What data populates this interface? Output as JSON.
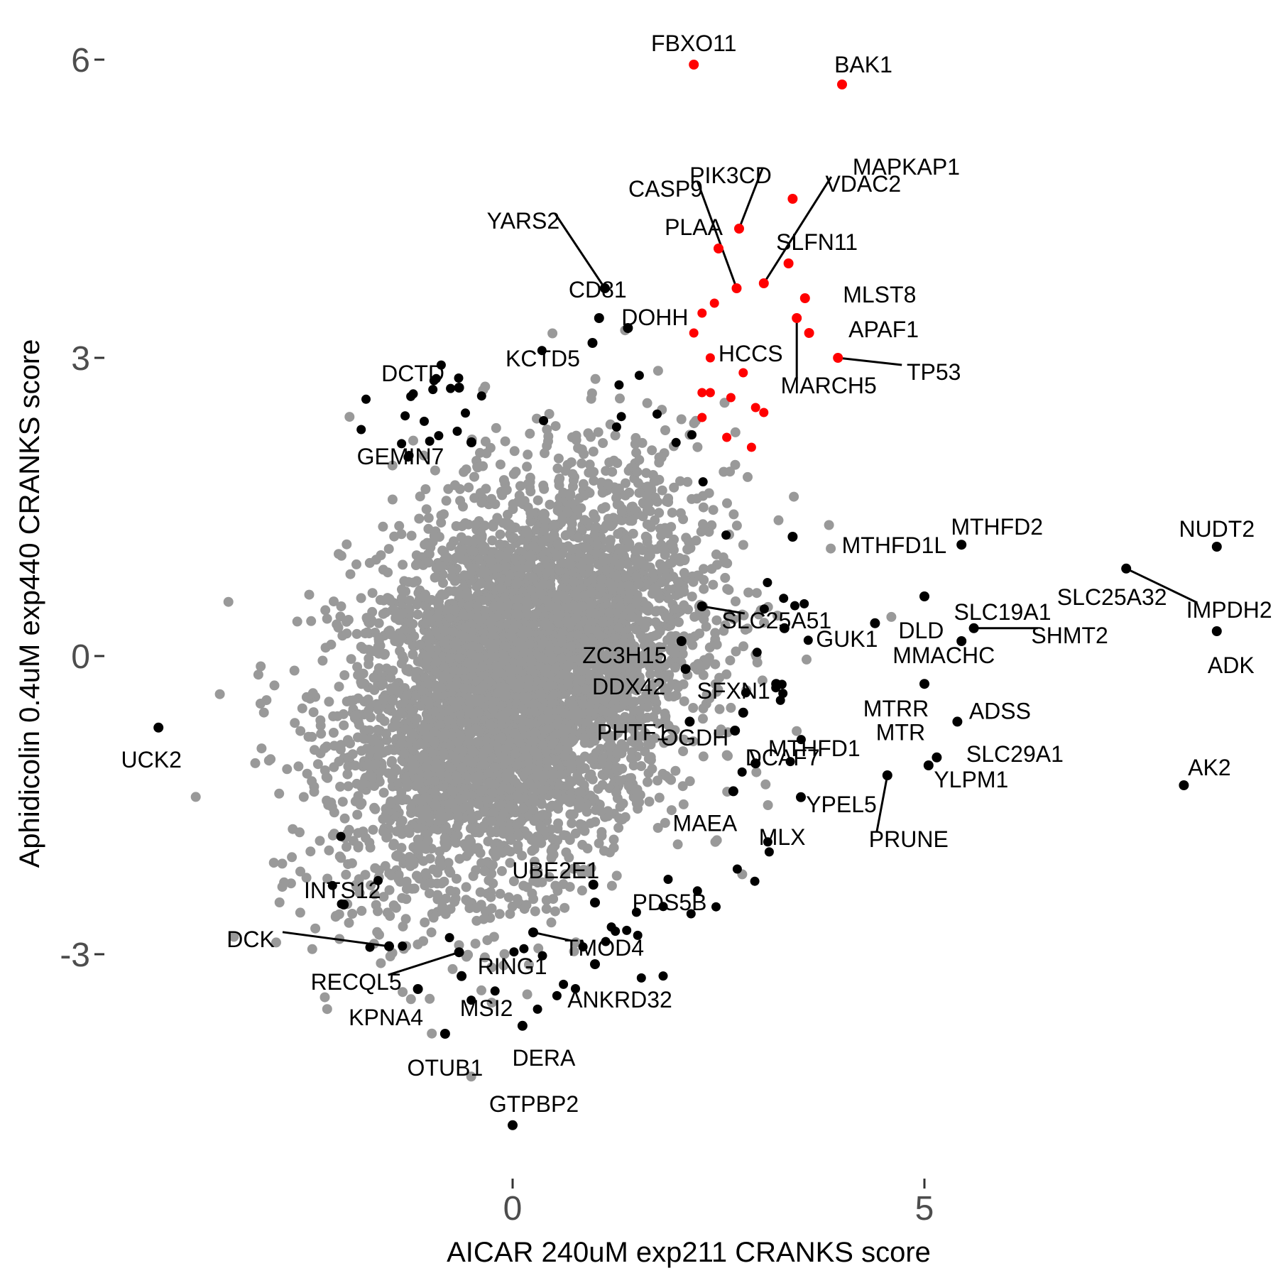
{
  "chart_data": {
    "type": "scatter",
    "xlabel": "AICAR 240uM exp211 CRANKS score",
    "ylabel": "Aphidicolin 0.4uM exp440 CRANKS score",
    "xlim": [
      -4.5,
      8.8
    ],
    "ylim": [
      -5.0,
      6.4
    ],
    "x_ticks": [
      0,
      5
    ],
    "y_ticks": [
      -3,
      0,
      3,
      6
    ],
    "x_tick_labels": [
      "0",
      "5"
    ],
    "y_tick_labels": [
      "-3",
      "0",
      "3",
      "6"
    ],
    "grid": false,
    "legend": "none",
    "colors": {
      "background_points": "#999999",
      "hits": "#000000",
      "highlighted": "#ff0000"
    },
    "background_cloud": {
      "center": [
        0.1,
        -0.25
      ],
      "sd": [
        1.05,
        1.0
      ],
      "n": 5200
    },
    "labeled_points": [
      {
        "label": "FBXO11",
        "x": 2.2,
        "y": 5.95,
        "color": "red"
      },
      {
        "label": "BAK1",
        "x": 4.0,
        "y": 5.75,
        "color": "red"
      },
      {
        "label": "MAPKAP1",
        "x": 3.4,
        "y": 4.6,
        "color": "red"
      },
      {
        "label": "VDAC2",
        "x": 3.05,
        "y": 3.75,
        "color": "red"
      },
      {
        "label": "PIK3CD",
        "x": 2.75,
        "y": 4.3,
        "color": "red"
      },
      {
        "label": "CASP9",
        "x": 2.72,
        "y": 3.7,
        "color": "red"
      },
      {
        "label": "PLAA",
        "x": 2.5,
        "y": 4.1,
        "color": "red"
      },
      {
        "label": "SLFN11",
        "x": 3.35,
        "y": 3.95,
        "color": "red"
      },
      {
        "label": "MLST8",
        "x": 3.55,
        "y": 3.6,
        "color": "red"
      },
      {
        "label": "APAF1",
        "x": 3.6,
        "y": 3.25,
        "color": "red"
      },
      {
        "label": "HCCS",
        "x": 3.45,
        "y": 3.4,
        "color": "red"
      },
      {
        "label": "MARCH5",
        "x": 3.45,
        "y": 3.4,
        "color": "red"
      },
      {
        "label": "TP53",
        "x": 3.95,
        "y": 3.0,
        "color": "red"
      },
      {
        "label": "YARS2",
        "x": 1.12,
        "y": 3.7,
        "color": "black"
      },
      {
        "label": "CD81",
        "x": 1.05,
        "y": 3.4,
        "color": "black"
      },
      {
        "label": "KCTD5",
        "x": 0.97,
        "y": 3.15,
        "color": "black"
      },
      {
        "label": "DOHH",
        "x": 1.4,
        "y": 3.3,
        "color": "black"
      },
      {
        "label": "DCTD",
        "x": -0.65,
        "y": 2.7,
        "color": "black"
      },
      {
        "label": "GEMIN7",
        "x": -0.5,
        "y": 2.15,
        "color": "black"
      },
      {
        "label": "MTHFD1L",
        "x": 3.4,
        "y": 1.2,
        "color": "black"
      },
      {
        "label": "MTHFD2",
        "x": 5.45,
        "y": 1.12,
        "color": "black"
      },
      {
        "label": "NUDT2",
        "x": 8.55,
        "y": 1.1,
        "color": "black"
      },
      {
        "label": "SLC19A1",
        "x": 5.0,
        "y": 0.6,
        "color": "black"
      },
      {
        "label": "SLC25A32",
        "x": 7.45,
        "y": 0.88,
        "color": "black"
      },
      {
        "label": "IMPDH2",
        "x": 7.45,
        "y": 0.88,
        "color": "black"
      },
      {
        "label": "SLC25A51",
        "x": 2.3,
        "y": 0.5,
        "color": "black"
      },
      {
        "label": "DLD",
        "x": 4.4,
        "y": 0.33,
        "color": "black"
      },
      {
        "label": "GUK1",
        "x": 3.3,
        "y": 0.28,
        "color": "black"
      },
      {
        "label": "SHMT2",
        "x": 5.6,
        "y": 0.28,
        "color": "black"
      },
      {
        "label": "ADK",
        "x": 8.55,
        "y": 0.25,
        "color": "black"
      },
      {
        "label": "ZC3H15",
        "x": 2.05,
        "y": 0.15,
        "color": "black"
      },
      {
        "label": "MMACHC",
        "x": 5.45,
        "y": 0.15,
        "color": "black"
      },
      {
        "label": "MTRR",
        "x": 5.0,
        "y": -0.28,
        "color": "black"
      },
      {
        "label": "DDX42",
        "x": 2.1,
        "y": -0.13,
        "color": "black"
      },
      {
        "label": "SFXN1",
        "x": 3.2,
        "y": -0.28,
        "color": "black"
      },
      {
        "label": "MTHFD1",
        "x": 2.8,
        "y": -0.57,
        "color": "black"
      },
      {
        "label": "MTR",
        "x": 5.4,
        "y": -0.66,
        "color": "black"
      },
      {
        "label": "ADSS",
        "x": 5.4,
        "y": -0.66,
        "color": "black"
      },
      {
        "label": "PHTF1",
        "x": 2.15,
        "y": -0.66,
        "color": "black"
      },
      {
        "label": "SLC29A1",
        "x": 5.15,
        "y": -1.02,
        "color": "black"
      },
      {
        "label": "UCK2",
        "x": -4.3,
        "y": -0.72,
        "color": "black"
      },
      {
        "label": "OGDH",
        "x": 2.7,
        "y": -0.75,
        "color": "black"
      },
      {
        "label": "DCAF7",
        "x": 2.95,
        "y": -1.08,
        "color": "black"
      },
      {
        "label": "AK2",
        "x": 8.15,
        "y": -1.3,
        "color": "black"
      },
      {
        "label": "YPEL5",
        "x": 3.5,
        "y": -1.42,
        "color": "black"
      },
      {
        "label": "YLPM1",
        "x": 5.05,
        "y": -1.1,
        "color": "black"
      },
      {
        "label": "PRUNE",
        "x": 4.55,
        "y": -1.2,
        "color": "black"
      },
      {
        "label": "MAEA",
        "x": 2.68,
        "y": -1.36,
        "color": "black"
      },
      {
        "label": "MLX",
        "x": 3.1,
        "y": -1.5,
        "color": "grey"
      },
      {
        "label": "UBE2E1",
        "x": 0.98,
        "y": -2.3,
        "color": "black"
      },
      {
        "label": "PDS5B",
        "x": 1.0,
        "y": -2.48,
        "color": "black"
      },
      {
        "label": "INTS12",
        "x": -2.05,
        "y": -2.5,
        "color": "black"
      },
      {
        "label": "DCK",
        "x": -1.5,
        "y": -2.92,
        "color": "black"
      },
      {
        "label": "TMOD4",
        "x": 0.25,
        "y": -2.78,
        "color": "black"
      },
      {
        "label": "RING1",
        "x": -0.65,
        "y": -2.98,
        "color": "black"
      },
      {
        "label": "RECQL5",
        "x": -0.65,
        "y": -2.98,
        "color": "black"
      },
      {
        "label": "ANKRD32",
        "x": 1.0,
        "y": -3.1,
        "color": "black"
      },
      {
        "label": "MSI2",
        "x": -0.62,
        "y": -3.22,
        "color": "black"
      },
      {
        "label": "KPNA4",
        "x": -1.15,
        "y": -3.35,
        "color": "black"
      },
      {
        "label": "OTUB1",
        "x": -0.82,
        "y": -3.8,
        "color": "black"
      },
      {
        "label": "DERA",
        "x": 0.12,
        "y": -3.72,
        "color": "black"
      },
      {
        "label": "GTPBP2",
        "x": 0.0,
        "y": -4.72,
        "color": "black"
      }
    ]
  }
}
